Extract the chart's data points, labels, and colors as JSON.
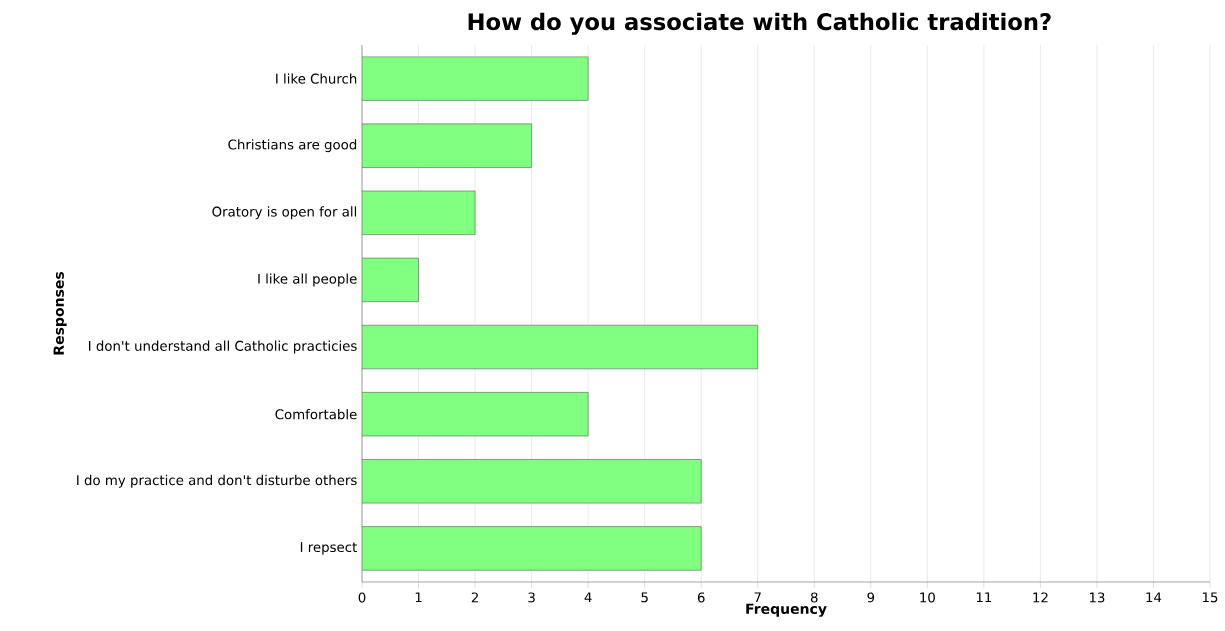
{
  "chart_data": {
    "type": "bar",
    "orientation": "horizontal",
    "title": "How do you associate with Catholic tradition?",
    "xlabel": "Frequency",
    "ylabel": "Responses",
    "categories": [
      "I like Church",
      "Christians are good",
      "Oratory is open for all",
      "I like all people",
      "I don't understand all Catholic practicies",
      "Comfortable",
      "I do my practice and don't disturbe others",
      "I repsect"
    ],
    "values": [
      4,
      3,
      2,
      1,
      7,
      4,
      6,
      6
    ],
    "color": "#80ff80",
    "xlim": [
      0,
      15
    ],
    "xticks": [
      0,
      1,
      2,
      3,
      4,
      5,
      6,
      7,
      8,
      9,
      10,
      11,
      12,
      13,
      14,
      15
    ],
    "grid": "x"
  }
}
